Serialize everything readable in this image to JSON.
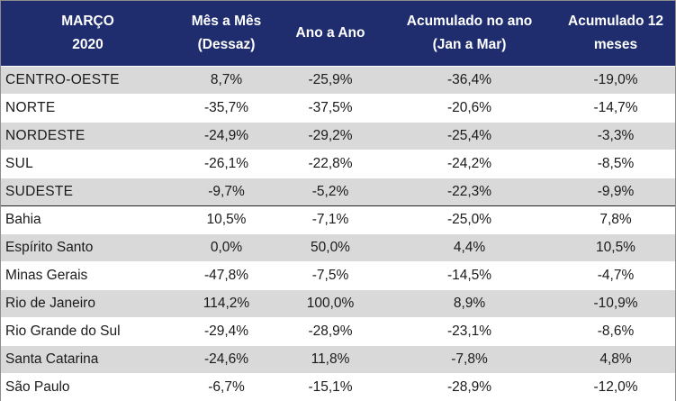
{
  "header": {
    "col0": [
      "MARÇO",
      "2020"
    ],
    "col1": [
      "Mês a Mês",
      "(Dessaz)"
    ],
    "col2": [
      "Ano a Ano"
    ],
    "col3": [
      "Acumulado no ano",
      "(Jan a Mar)"
    ],
    "col4": [
      "Acumulado 12",
      "meses"
    ]
  },
  "rows": [
    {
      "name": "CENTRO-OESTE",
      "mom": "8,7%",
      "yoy": "-25,9%",
      "ytd": "-36,4%",
      "ttm": "-19,0%"
    },
    {
      "name": "NORTE",
      "mom": "-35,7%",
      "yoy": "-37,5%",
      "ytd": "-20,6%",
      "ttm": "-14,7%"
    },
    {
      "name": "NORDESTE",
      "mom": "-24,9%",
      "yoy": "-29,2%",
      "ytd": "-25,4%",
      "ttm": "-3,3%"
    },
    {
      "name": "SUL",
      "mom": "-26,1%",
      "yoy": "-22,8%",
      "ytd": "-24,2%",
      "ttm": "-8,5%"
    },
    {
      "name": "SUDESTE",
      "mom": "-9,7%",
      "yoy": "-5,2%",
      "ytd": "-22,3%",
      "ttm": "-9,9%"
    },
    {
      "name": "Bahia",
      "mom": "10,5%",
      "yoy": "-7,1%",
      "ytd": "-25,0%",
      "ttm": "7,8%"
    },
    {
      "name": "Espírito Santo",
      "mom": "0,0%",
      "yoy": "50,0%",
      "ytd": "4,4%",
      "ttm": "10,5%"
    },
    {
      "name": "Minas Gerais",
      "mom": "-47,8%",
      "yoy": "-7,5%",
      "ytd": "-14,5%",
      "ttm": "-4,7%"
    },
    {
      "name": "Rio de Janeiro",
      "mom": "114,2%",
      "yoy": "100,0%",
      "ytd": "8,9%",
      "ttm": "-10,9%"
    },
    {
      "name": "Rio Grande do Sul",
      "mom": "-29,4%",
      "yoy": "-28,9%",
      "ytd": "-23,1%",
      "ttm": "-8,6%"
    },
    {
      "name": "Santa Catarina",
      "mom": "-24,6%",
      "yoy": "11,8%",
      "ytd": "-7,8%",
      "ttm": "4,8%"
    },
    {
      "name": "São Paulo",
      "mom": "-6,7%",
      "yoy": "-15,1%",
      "ytd": "-28,9%",
      "ttm": "-12,0%"
    }
  ],
  "colors": {
    "header_bg": "#1f2d6e",
    "header_text": "#ffffff",
    "row_shade": "#d9d9d9",
    "row_white": "#ffffff"
  }
}
